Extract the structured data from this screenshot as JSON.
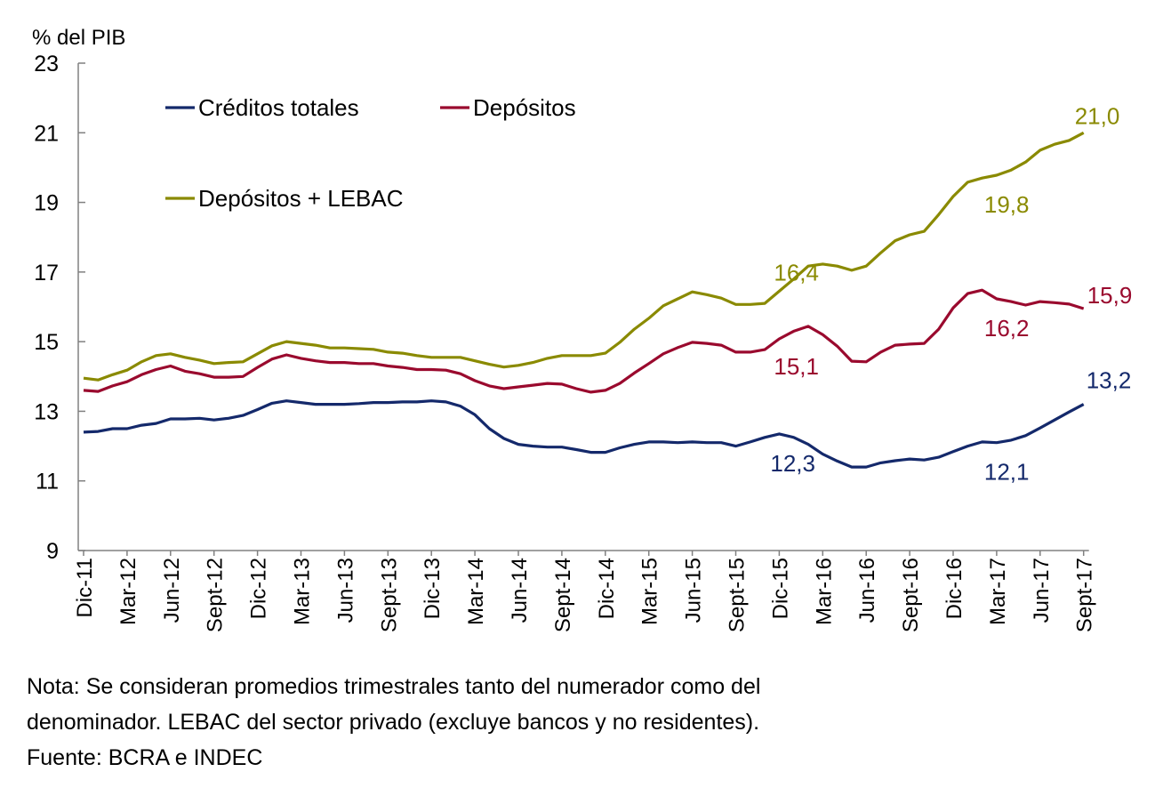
{
  "chart_data": {
    "type": "line",
    "ylabel": "% del PIB",
    "ylim": [
      9,
      23
    ],
    "yticks": [
      9,
      11,
      13,
      15,
      17,
      19,
      21,
      23
    ],
    "grid": false,
    "legend_placement": "top-left",
    "x_tick_labels": [
      "Dic-11",
      "Mar-12",
      "Jun-12",
      "Sept-12",
      "Dic-12",
      "Mar-13",
      "Jun-13",
      "Sept-13",
      "Dic-13",
      "Mar-14",
      "Jun-14",
      "Sept-14",
      "Dic-14",
      "Mar-15",
      "Jun-15",
      "Sept-15",
      "Dic-15",
      "Mar-16",
      "Jun-16",
      "Sept-16",
      "Dic-16",
      "Mar-17",
      "Jun-17",
      "Sept-17"
    ],
    "categories": [
      "Dic-11",
      "Ene-12",
      "Feb-12",
      "Mar-12",
      "Abr-12",
      "May-12",
      "Jun-12",
      "Jul-12",
      "Ago-12",
      "Sept-12",
      "Oct-12",
      "Nov-12",
      "Dic-12",
      "Ene-13",
      "Feb-13",
      "Mar-13",
      "Abr-13",
      "May-13",
      "Jun-13",
      "Jul-13",
      "Ago-13",
      "Sept-13",
      "Oct-13",
      "Nov-13",
      "Dic-13",
      "Ene-14",
      "Feb-14",
      "Mar-14",
      "Abr-14",
      "May-14",
      "Jun-14",
      "Jul-14",
      "Ago-14",
      "Sept-14",
      "Oct-14",
      "Nov-14",
      "Dic-14",
      "Ene-15",
      "Feb-15",
      "Mar-15",
      "Abr-15",
      "May-15",
      "Jun-15",
      "Jul-15",
      "Ago-15",
      "Sept-15",
      "Oct-15",
      "Nov-15",
      "Dic-15",
      "Ene-16",
      "Feb-16",
      "Mar-16",
      "Abr-16",
      "May-16",
      "Jun-16",
      "Jul-16",
      "Ago-16",
      "Sept-16",
      "Oct-16",
      "Nov-16",
      "Dic-16",
      "Ene-17",
      "Feb-17",
      "Mar-17",
      "Abr-17",
      "May-17",
      "Jun-17",
      "Jul-17",
      "Ago-17",
      "Sept-17"
    ],
    "series": [
      {
        "name": "Créditos totales",
        "color": "#14296b",
        "values": [
          12.4,
          12.42,
          12.5,
          12.5,
          12.6,
          12.65,
          12.78,
          12.78,
          12.8,
          12.75,
          12.8,
          12.88,
          13.05,
          13.23,
          13.3,
          13.25,
          13.2,
          13.2,
          13.2,
          13.22,
          13.25,
          13.25,
          13.27,
          13.27,
          13.3,
          13.27,
          13.15,
          12.9,
          12.5,
          12.22,
          12.05,
          12.0,
          11.97,
          11.97,
          11.9,
          11.82,
          11.82,
          11.95,
          12.05,
          12.12,
          12.12,
          12.1,
          12.12,
          12.1,
          12.1,
          12.0,
          12.12,
          12.25,
          12.35,
          12.25,
          12.05,
          11.77,
          11.57,
          11.4,
          11.4,
          11.52,
          11.58,
          11.63,
          11.6,
          11.68,
          11.84,
          12.0,
          12.12,
          12.1,
          12.17,
          12.3,
          12.52,
          12.75,
          12.98,
          13.2
        ]
      },
      {
        "name": "Depósitos",
        "color": "#9a0a2e",
        "values": [
          13.6,
          13.57,
          13.73,
          13.85,
          14.05,
          14.2,
          14.3,
          14.15,
          14.08,
          13.98,
          13.98,
          14.0,
          14.26,
          14.5,
          14.62,
          14.52,
          14.45,
          14.4,
          14.4,
          14.37,
          14.37,
          14.3,
          14.26,
          14.2,
          14.2,
          14.18,
          14.08,
          13.88,
          13.73,
          13.65,
          13.7,
          13.75,
          13.8,
          13.78,
          13.65,
          13.55,
          13.6,
          13.8,
          14.1,
          14.37,
          14.65,
          14.83,
          14.98,
          14.95,
          14.9,
          14.7,
          14.7,
          14.77,
          15.08,
          15.3,
          15.44,
          15.2,
          14.87,
          14.44,
          14.42,
          14.7,
          14.9,
          14.93,
          14.95,
          15.36,
          15.97,
          16.38,
          16.48,
          16.23,
          16.15,
          16.05,
          16.15,
          16.12,
          16.08,
          15.95
        ]
      },
      {
        "name": "Depósitos + LEBAC",
        "color": "#8a8a00",
        "values": [
          13.95,
          13.9,
          14.05,
          14.18,
          14.42,
          14.6,
          14.65,
          14.55,
          14.47,
          14.37,
          14.4,
          14.42,
          14.65,
          14.88,
          15.0,
          14.95,
          14.9,
          14.82,
          14.82,
          14.8,
          14.78,
          14.7,
          14.67,
          14.6,
          14.55,
          14.55,
          14.55,
          14.45,
          14.35,
          14.27,
          14.32,
          14.4,
          14.52,
          14.6,
          14.6,
          14.6,
          14.67,
          14.98,
          15.36,
          15.67,
          16.03,
          16.23,
          16.43,
          16.35,
          16.25,
          16.07,
          16.07,
          16.1,
          16.45,
          16.8,
          17.17,
          17.23,
          17.17,
          17.05,
          17.17,
          17.55,
          17.9,
          18.07,
          18.17,
          18.65,
          19.17,
          19.58,
          19.7,
          19.78,
          19.93,
          20.16,
          20.5,
          20.67,
          20.78,
          21.0
        ]
      }
    ],
    "annotations": [
      {
        "series": 0,
        "category": "Dic-15",
        "text": "12,3"
      },
      {
        "series": 0,
        "category": "Mar-17",
        "text": "12,1"
      },
      {
        "series": 0,
        "category": "Sept-17",
        "text": "13,2"
      },
      {
        "series": 1,
        "category": "Dic-15",
        "text": "15,1"
      },
      {
        "series": 1,
        "category": "Mar-17",
        "text": "16,2"
      },
      {
        "series": 1,
        "category": "Sept-17",
        "text": "15,9"
      },
      {
        "series": 2,
        "category": "Dic-15",
        "text": "16,4"
      },
      {
        "series": 2,
        "category": "Mar-17",
        "text": "19,8"
      },
      {
        "series": 2,
        "category": "Sept-17",
        "text": "21,0"
      }
    ]
  },
  "notes": {
    "line1": "Nota: Se consideran promedios trimestrales tanto del numerador como del",
    "line2": "denominador. LEBAC del sector privado (excluye bancos y no residentes).",
    "line3": "Fuente: BCRA e INDEC"
  }
}
